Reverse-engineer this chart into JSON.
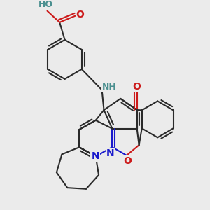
{
  "bg_color": "#ebebeb",
  "bond_color": "#2a2a2a",
  "bond_width": 1.5,
  "atom_colors": {
    "N": "#1a1acc",
    "O": "#cc1a1a",
    "H_label": "#4a8f8f",
    "C": "#2a2a2a"
  },
  "font_size": 10,
  "fig_size": [
    3.0,
    3.0
  ],
  "dpi": 100
}
